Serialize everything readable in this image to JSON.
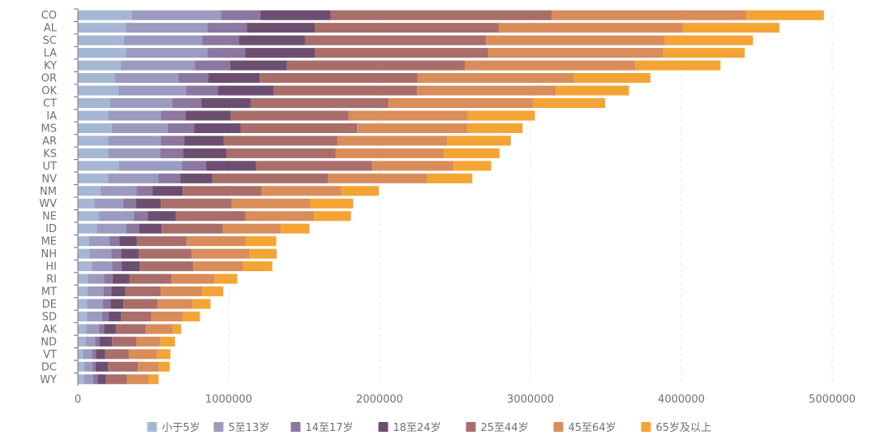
{
  "chart_data": {
    "type": "bar",
    "orientation": "horizontal",
    "stacked": true,
    "categories": [
      "CO",
      "AL",
      "SC",
      "LA",
      "KY",
      "OR",
      "OK",
      "CT",
      "IA",
      "MS",
      "AR",
      "KS",
      "UT",
      "NV",
      "NM",
      "WV",
      "NE",
      "ID",
      "ME",
      "NH",
      "HI",
      "RI",
      "MT",
      "DE",
      "SD",
      "AK",
      "ND",
      "VT",
      "DC",
      "WY"
    ],
    "series": [
      {
        "name": "小于5岁",
        "color": "#a6b7d4",
        "values": [
          358000,
          318000,
          305000,
          320000,
          285000,
          245000,
          268000,
          215000,
          200000,
          225000,
          200000,
          200000,
          270000,
          200000,
          150000,
          110000,
          140000,
          125000,
          75000,
          78000,
          92000,
          65000,
          65000,
          62000,
          62000,
          55000,
          50000,
          35000,
          42000,
          40000
        ]
      },
      {
        "name": "5至13岁",
        "color": "#9b9bbf",
        "values": [
          590000,
          542000,
          520000,
          540000,
          490000,
          420000,
          450000,
          410000,
          350000,
          370000,
          350000,
          345000,
          420000,
          335000,
          240000,
          190000,
          230000,
          195000,
          135000,
          145000,
          135000,
          110000,
          105000,
          105000,
          98000,
          85000,
          65000,
          58000,
          55000,
          62000
        ]
      },
      {
        "name": "14至17岁",
        "color": "#8b77a0",
        "values": [
          262000,
          260000,
          245000,
          250000,
          235000,
          200000,
          210000,
          195000,
          165000,
          175000,
          155000,
          152000,
          160000,
          145000,
          105000,
          85000,
          95000,
          85000,
          65000,
          65000,
          62000,
          55000,
          52000,
          50000,
          45000,
          35000,
          30000,
          28000,
          20000,
          28000
        ]
      },
      {
        "name": "18至24岁",
        "color": "#6c4f70",
        "values": [
          465000,
          450000,
          435000,
          460000,
          375000,
          340000,
          370000,
          325000,
          300000,
          310000,
          260000,
          290000,
          330000,
          210000,
          200000,
          165000,
          185000,
          150000,
          115000,
          115000,
          120000,
          112000,
          92000,
          85000,
          82000,
          75000,
          82000,
          60000,
          82000,
          55000
        ]
      },
      {
        "name": "25至44岁",
        "color": "#a96e6a",
        "values": [
          1465000,
          1220000,
          1200000,
          1150000,
          1180000,
          1045000,
          950000,
          915000,
          780000,
          770000,
          755000,
          720000,
          770000,
          770000,
          520000,
          470000,
          460000,
          405000,
          330000,
          350000,
          355000,
          280000,
          235000,
          225000,
          200000,
          200000,
          160000,
          155000,
          200000,
          140000
        ]
      },
      {
        "name": "45至64岁",
        "color": "#d98d5a",
        "values": [
          1290000,
          1220000,
          1185000,
          1160000,
          1130000,
          1035000,
          920000,
          960000,
          790000,
          728000,
          730000,
          718000,
          540000,
          655000,
          530000,
          520000,
          455000,
          385000,
          390000,
          385000,
          330000,
          285000,
          275000,
          232000,
          210000,
          180000,
          160000,
          190000,
          140000,
          145000
        ]
      },
      {
        "name": "65岁及以上",
        "color": "#f4a434",
        "values": [
          515000,
          640000,
          585000,
          540000,
          565000,
          510000,
          485000,
          475000,
          445000,
          370000,
          420000,
          370000,
          250000,
          300000,
          250000,
          285000,
          245000,
          190000,
          205000,
          180000,
          195000,
          150000,
          140000,
          120000,
          112000,
          55000,
          97000,
          88000,
          70000,
          65000
        ]
      }
    ],
    "x_axis": {
      "min": 0,
      "max": 5000000,
      "ticks": [
        "0",
        "1000000",
        "2000000",
        "3000000",
        "4000000",
        "5000000"
      ]
    },
    "grid": "vertical dashed",
    "legend_position": "bottom-center"
  }
}
